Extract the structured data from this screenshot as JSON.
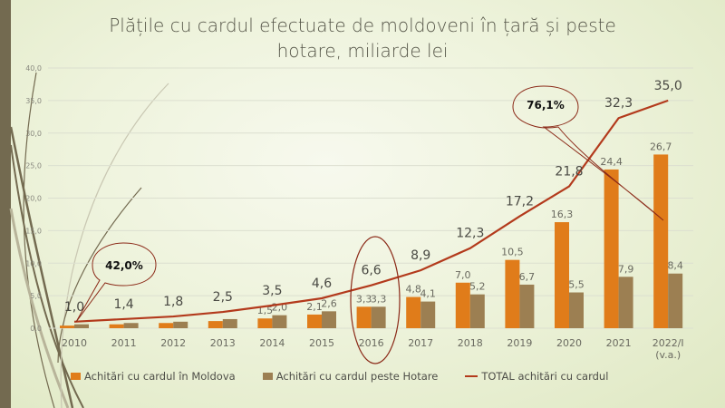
{
  "chart_data": {
    "type": "bar",
    "title": "Plățile cu cardul efectuate de moldoveni în țară și peste hotare, miliarde lei",
    "xlabel": "",
    "ylabel": "",
    "ylim": [
      0,
      40
    ],
    "yticks": [
      "0,0",
      "5,0",
      "10,0",
      "15,0",
      "20,0",
      "25,0",
      "30,0",
      "35,0",
      "40,0"
    ],
    "ytick_values": [
      0,
      5,
      10,
      15,
      20,
      25,
      30,
      35,
      40
    ],
    "grid": true,
    "legend_position": "bottom",
    "categories": [
      "2010",
      "2011",
      "2012",
      "2013",
      "2014",
      "2015",
      "2016",
      "2017",
      "2018",
      "2019",
      "2020",
      "2021",
      "2022/I (v.a.)"
    ],
    "category_lines": [
      [
        "2010"
      ],
      [
        "2011"
      ],
      [
        "2012"
      ],
      [
        "2013"
      ],
      [
        "2014"
      ],
      [
        "2015"
      ],
      [
        "2016"
      ],
      [
        "2017"
      ],
      [
        "2018"
      ],
      [
        "2019"
      ],
      [
        "2020"
      ],
      [
        "2021"
      ],
      [
        "2022/I",
        "(v.a.)"
      ]
    ],
    "series": [
      {
        "name": "Achitări cu cardul în Moldova",
        "type": "bar",
        "color": "#e07c1a",
        "values": [
          0.4,
          0.6,
          0.8,
          1.1,
          1.5,
          2.1,
          3.3,
          4.8,
          7.0,
          10.5,
          16.3,
          24.4,
          26.7
        ],
        "labels": [
          "",
          "",
          "",
          "",
          "1,5",
          "2,1",
          "3,3",
          "4,8",
          "7,0",
          "10,5",
          "16,3",
          "24,4",
          "26,7"
        ]
      },
      {
        "name": "Achitări cu cardul peste Hotare",
        "type": "bar",
        "color": "#9c7f52",
        "values": [
          0.6,
          0.8,
          1.0,
          1.4,
          2.0,
          2.6,
          3.3,
          4.1,
          5.2,
          6.7,
          5.5,
          7.9,
          8.4
        ],
        "labels": [
          "",
          "",
          "",
          "",
          "2,0",
          "2,6",
          "3,3",
          "4,1",
          "5,2",
          "6,7",
          "5,5",
          "7,9",
          "8,4"
        ]
      },
      {
        "name": "TOTAL achitări cu cardul",
        "type": "line",
        "color": "#b33a1c",
        "values": [
          1.0,
          1.4,
          1.8,
          2.5,
          3.5,
          4.6,
          6.6,
          8.9,
          12.3,
          17.2,
          21.8,
          32.3,
          35.0
        ],
        "labels": [
          "1,0",
          "1,4",
          "1,8",
          "2,5",
          "3,5",
          "4,6",
          "6,6",
          "8,9",
          "12,3",
          "17,2",
          "21,8",
          "32,3",
          "35,0"
        ]
      }
    ],
    "annotations": [
      {
        "type": "callout",
        "text": "42,0%",
        "points_to": "2010"
      },
      {
        "type": "callout",
        "text": "76,1%",
        "points_to": "2022/I (v.a.)"
      },
      {
        "type": "ellipse",
        "highlights": "2016"
      }
    ]
  }
}
